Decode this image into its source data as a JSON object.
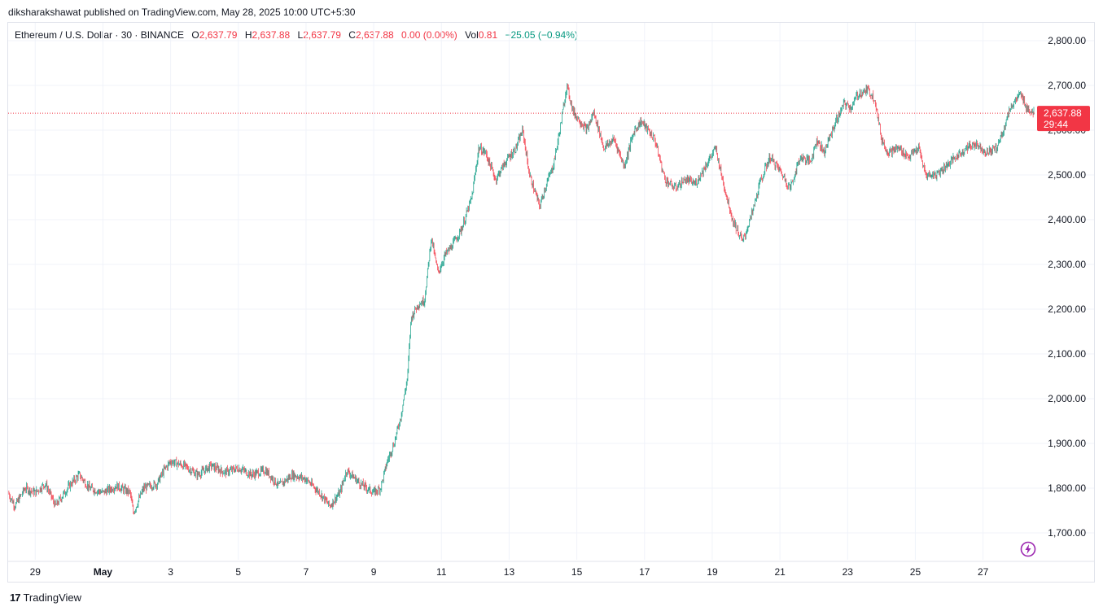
{
  "publisher_line": "diksharakshawat published on TradingView.com, May 28, 2025 10:00 UTC+5:30",
  "legend": {
    "symbol": "Ethereum / U.S. Dollar · 30 · BINANCE",
    "o_label": "O",
    "o_value": "2,637.79",
    "h_label": "H",
    "h_value": "2,637.88",
    "l_label": "L",
    "l_value": "2,637.79",
    "c_label": "C",
    "c_value": "2,637.88",
    "change": "0.00 (0.00%)",
    "vol_label": "Vol",
    "vol_value": "0.81",
    "day_change": "−25.05 (−0.94%)"
  },
  "price_label": {
    "price": "2,637.88",
    "countdown": "29:44"
  },
  "footer": {
    "brand": "TradingView",
    "mark": "17"
  },
  "colors": {
    "up": "#089981",
    "down": "#f23645",
    "grid": "#f0f3fa",
    "text": "#131722",
    "accent": "#9c27b0"
  },
  "chart_data": {
    "type": "candlestick",
    "interval": "30",
    "last_price": 2637.88,
    "ylim": [
      1640,
      2840
    ],
    "y_ticks": [
      "1,700.00",
      "1,800.00",
      "1,900.00",
      "2,000.00",
      "2,100.00",
      "2,200.00",
      "2,300.00",
      "2,400.00",
      "2,500.00",
      "2,600.00",
      "2,700.00",
      "2,800.00"
    ],
    "y_tick_values": [
      1700,
      1800,
      1900,
      2000,
      2100,
      2200,
      2300,
      2400,
      2500,
      2600,
      2700,
      2800
    ],
    "x_ticks": [
      {
        "label": "29",
        "day": 0
      },
      {
        "label": "May",
        "day": 2
      },
      {
        "label": "3",
        "day": 4
      },
      {
        "label": "5",
        "day": 6
      },
      {
        "label": "7",
        "day": 8
      },
      {
        "label": "9",
        "day": 10
      },
      {
        "label": "11",
        "day": 12
      },
      {
        "label": "13",
        "day": 14
      },
      {
        "label": "15",
        "day": 16
      },
      {
        "label": "17",
        "day": 18
      },
      {
        "label": "19",
        "day": 20
      },
      {
        "label": "21",
        "day": 22
      },
      {
        "label": "23",
        "day": 24
      },
      {
        "label": "25",
        "day": 26
      },
      {
        "label": "27",
        "day": 28
      }
    ],
    "x_range_days": [
      -0.8,
      29.5
    ],
    "price_path": [
      [
        -0.8,
        1790
      ],
      [
        -0.6,
        1760
      ],
      [
        -0.3,
        1800
      ],
      [
        0.0,
        1790
      ],
      [
        0.3,
        1810
      ],
      [
        0.6,
        1760
      ],
      [
        1.0,
        1805
      ],
      [
        1.3,
        1830
      ],
      [
        1.6,
        1800
      ],
      [
        2.0,
        1790
      ],
      [
        2.4,
        1805
      ],
      [
        2.8,
        1790
      ],
      [
        2.9,
        1745
      ],
      [
        3.2,
        1800
      ],
      [
        3.6,
        1810
      ],
      [
        3.8,
        1840
      ],
      [
        4.0,
        1860
      ],
      [
        4.4,
        1850
      ],
      [
        4.8,
        1830
      ],
      [
        5.2,
        1850
      ],
      [
        5.6,
        1835
      ],
      [
        6.0,
        1845
      ],
      [
        6.4,
        1830
      ],
      [
        6.8,
        1840
      ],
      [
        7.2,
        1805
      ],
      [
        7.6,
        1830
      ],
      [
        8.0,
        1820
      ],
      [
        8.4,
        1790
      ],
      [
        8.7,
        1760
      ],
      [
        9.0,
        1790
      ],
      [
        9.2,
        1840
      ],
      [
        9.6,
        1810
      ],
      [
        10.0,
        1790
      ],
      [
        10.2,
        1800
      ],
      [
        10.4,
        1860
      ],
      [
        10.6,
        1900
      ],
      [
        10.8,
        1960
      ],
      [
        11.0,
        2050
      ],
      [
        11.1,
        2180
      ],
      [
        11.3,
        2210
      ],
      [
        11.5,
        2220
      ],
      [
        11.7,
        2360
      ],
      [
        11.9,
        2280
      ],
      [
        12.1,
        2320
      ],
      [
        12.3,
        2340
      ],
      [
        12.6,
        2380
      ],
      [
        12.9,
        2450
      ],
      [
        13.1,
        2560
      ],
      [
        13.3,
        2550
      ],
      [
        13.6,
        2490
      ],
      [
        13.9,
        2530
      ],
      [
        14.2,
        2560
      ],
      [
        14.4,
        2600
      ],
      [
        14.6,
        2500
      ],
      [
        14.9,
        2430
      ],
      [
        15.1,
        2480
      ],
      [
        15.3,
        2520
      ],
      [
        15.5,
        2600
      ],
      [
        15.7,
        2700
      ],
      [
        15.9,
        2640
      ],
      [
        16.1,
        2620
      ],
      [
        16.3,
        2600
      ],
      [
        16.5,
        2640
      ],
      [
        16.8,
        2560
      ],
      [
        17.1,
        2580
      ],
      [
        17.4,
        2520
      ],
      [
        17.7,
        2600
      ],
      [
        17.9,
        2620
      ],
      [
        18.1,
        2600
      ],
      [
        18.3,
        2580
      ],
      [
        18.6,
        2490
      ],
      [
        18.9,
        2470
      ],
      [
        19.2,
        2490
      ],
      [
        19.5,
        2480
      ],
      [
        19.8,
        2520
      ],
      [
        20.1,
        2560
      ],
      [
        20.3,
        2490
      ],
      [
        20.6,
        2400
      ],
      [
        20.9,
        2350
      ],
      [
        21.2,
        2420
      ],
      [
        21.4,
        2480
      ],
      [
        21.7,
        2540
      ],
      [
        22.0,
        2510
      ],
      [
        22.3,
        2470
      ],
      [
        22.6,
        2540
      ],
      [
        22.9,
        2530
      ],
      [
        23.1,
        2580
      ],
      [
        23.3,
        2550
      ],
      [
        23.6,
        2610
      ],
      [
        23.9,
        2660
      ],
      [
        24.1,
        2650
      ],
      [
        24.3,
        2680
      ],
      [
        24.6,
        2690
      ],
      [
        24.8,
        2670
      ],
      [
        25.0,
        2580
      ],
      [
        25.2,
        2550
      ],
      [
        25.5,
        2560
      ],
      [
        25.8,
        2540
      ],
      [
        26.1,
        2560
      ],
      [
        26.3,
        2500
      ],
      [
        26.6,
        2500
      ],
      [
        26.9,
        2520
      ],
      [
        27.2,
        2540
      ],
      [
        27.5,
        2560
      ],
      [
        27.8,
        2570
      ],
      [
        28.1,
        2550
      ],
      [
        28.4,
        2560
      ],
      [
        28.6,
        2600
      ],
      [
        28.8,
        2650
      ],
      [
        29.1,
        2680
      ],
      [
        29.3,
        2650
      ],
      [
        29.5,
        2638
      ]
    ]
  }
}
